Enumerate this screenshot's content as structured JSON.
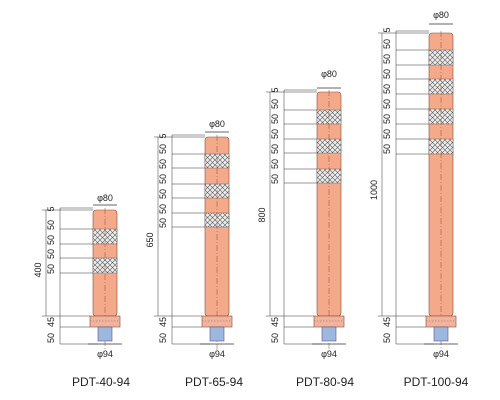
{
  "posts": [
    {
      "model": "PDT-40-94",
      "top_diameter": "φ80",
      "base_diameter": "φ94",
      "height": "400",
      "band_dims": [
        "5",
        "50",
        "50",
        "50",
        "50"
      ],
      "base_dims": [
        "45",
        "50"
      ]
    },
    {
      "model": "PDT-65-94",
      "top_diameter": "φ80",
      "base_diameter": "φ94",
      "height": "650",
      "band_dims": [
        "5",
        "50",
        "50",
        "50",
        "50",
        "50",
        "50"
      ],
      "base_dims": [
        "45",
        "50"
      ]
    },
    {
      "model": "PDT-80-94",
      "top_diameter": "φ80",
      "base_diameter": "φ94",
      "height": "800",
      "band_dims": [
        "5",
        "50",
        "50",
        "50",
        "50",
        "50",
        "50"
      ],
      "base_dims": [
        "45",
        "50"
      ]
    },
    {
      "model": "PDT-100-94",
      "top_diameter": "φ80",
      "base_diameter": "φ94",
      "height": "1000",
      "band_dims": [
        "5",
        "50",
        "50",
        "50",
        "50",
        "50",
        "50",
        "50",
        "50"
      ],
      "base_dims": [
        "45",
        "50"
      ]
    }
  ],
  "colors": {
    "post_body": "#f4a98a",
    "post_outline": "#8a4a36",
    "reflective_band": "#e9e9e9",
    "crosshatch": "#555555",
    "base_plate": "#f0b49c",
    "anchor": "#9fb6e0",
    "dimension_line": "#333333"
  }
}
